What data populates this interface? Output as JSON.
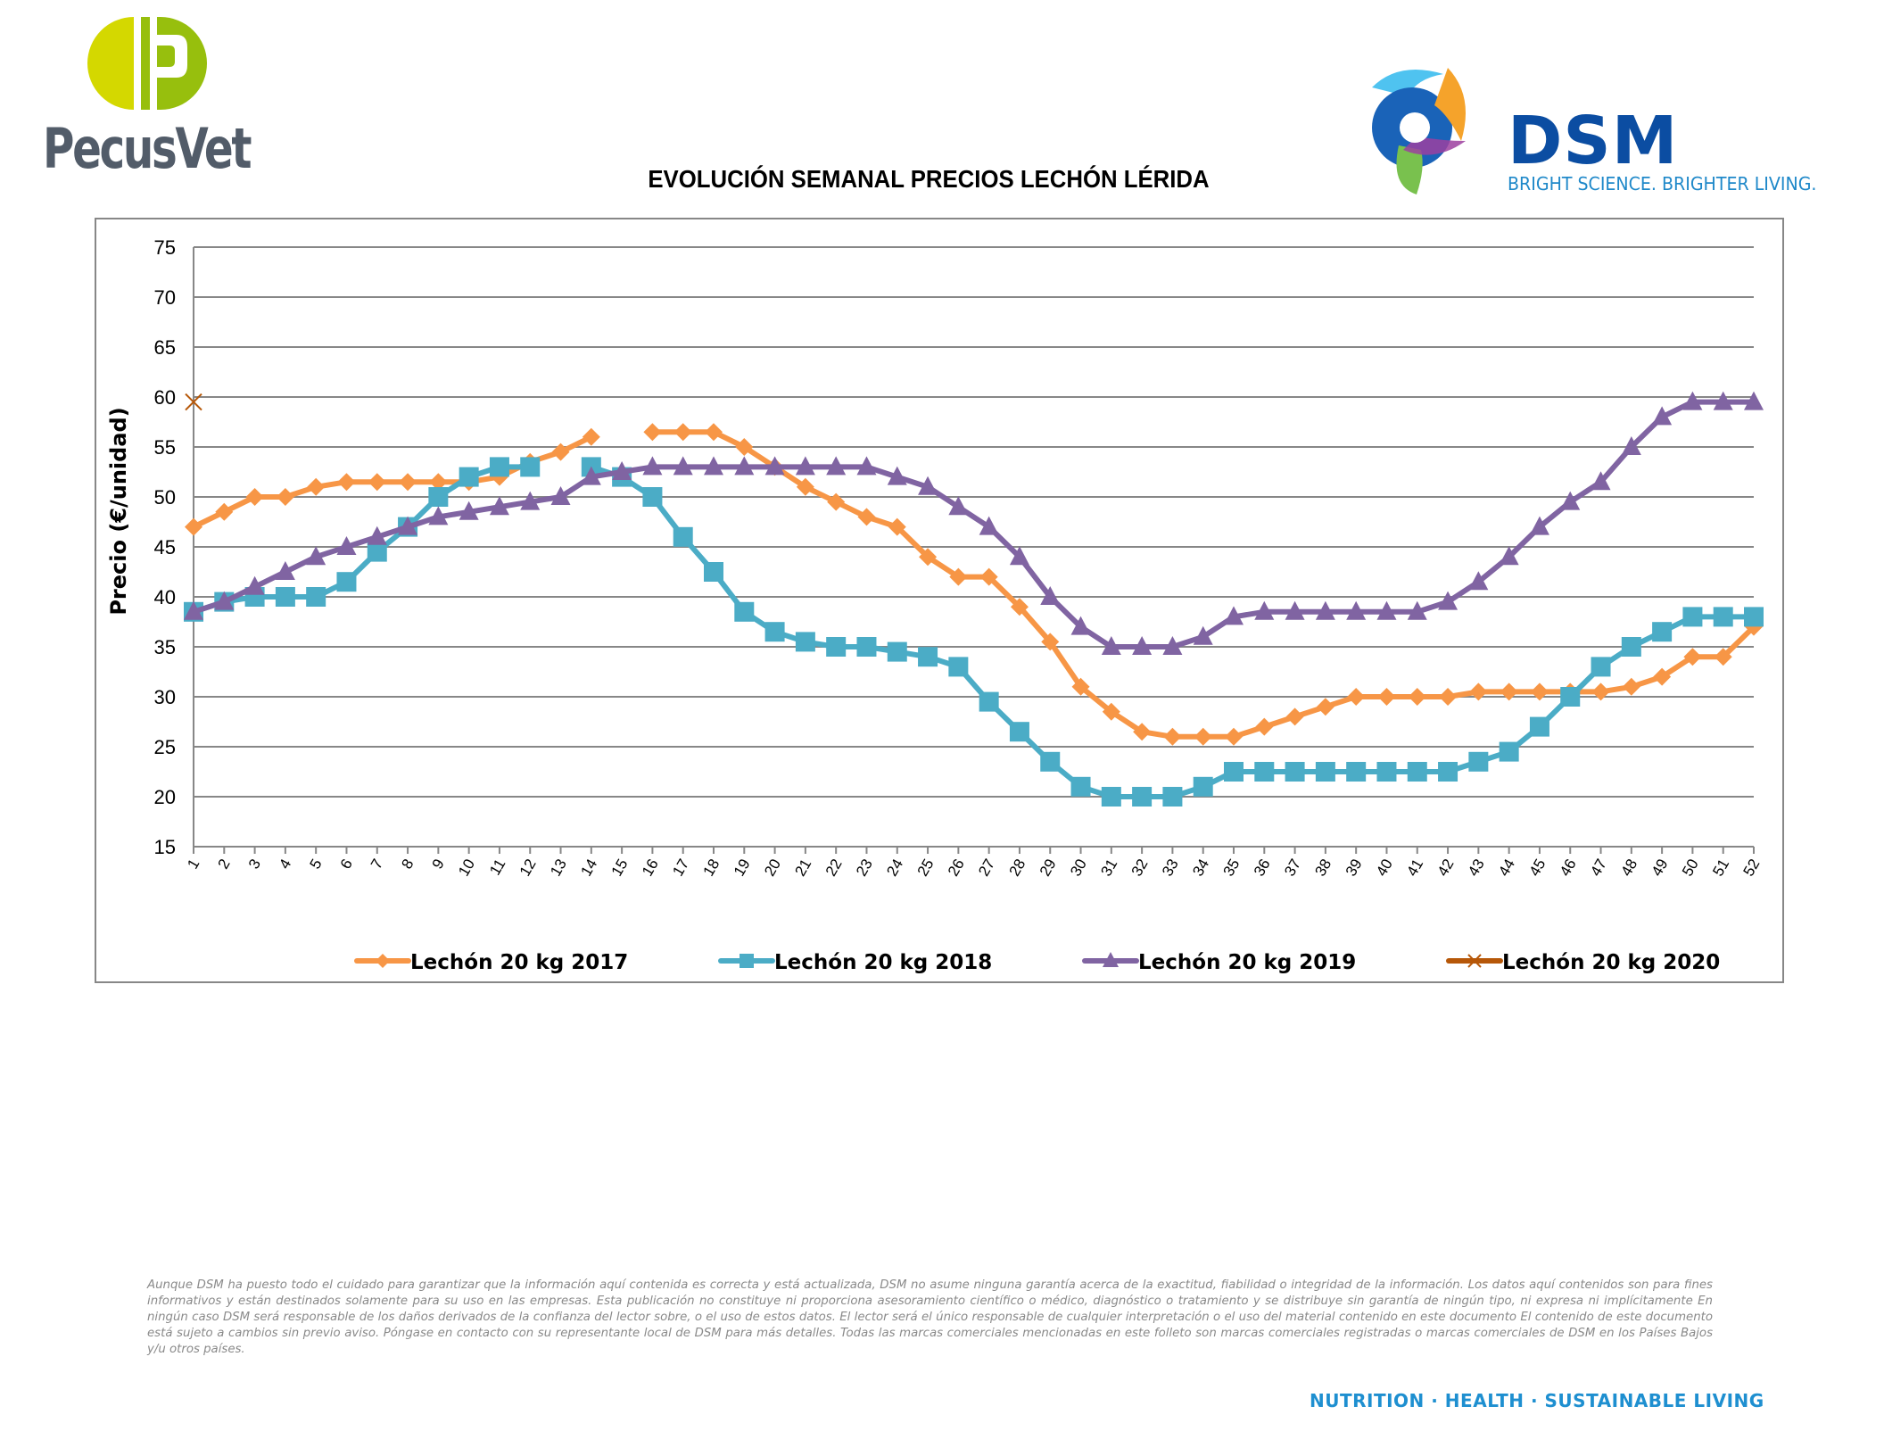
{
  "header": {
    "left_logo_text": "PecusVet",
    "right_logo_text": "DSM",
    "right_logo_tagline": "BRIGHT SCIENCE. BRIGHTER LIVING."
  },
  "colors": {
    "series_2017": "#F79646",
    "series_2018": "#4BACC6",
    "series_2019": "#8064A2",
    "series_2020": "#B65708",
    "grid": "#878787",
    "pecus_grey": "#525C69",
    "pecus_green_light": "#D4D800",
    "pecus_green": "#97BF0D",
    "dsm_blue": "#0B4DA2",
    "dsm_tagline_blue": "#1E88C9"
  },
  "chart_data": {
    "type": "line",
    "title": "EVOLUCIÓN SEMANAL PRECIOS LECHÓN LÉRIDA",
    "xlabel": "",
    "ylabel": "Precio (€/unidad)",
    "ylim": [
      15,
      75
    ],
    "yticks": [
      15,
      20,
      25,
      30,
      35,
      40,
      45,
      50,
      55,
      60,
      65,
      70,
      75
    ],
    "grid": true,
    "legend_position": "bottom",
    "x": [
      1,
      2,
      3,
      4,
      5,
      6,
      7,
      8,
      9,
      10,
      11,
      12,
      13,
      14,
      15,
      16,
      17,
      18,
      19,
      20,
      21,
      22,
      23,
      24,
      25,
      26,
      27,
      28,
      29,
      30,
      31,
      32,
      33,
      34,
      35,
      36,
      37,
      38,
      39,
      40,
      41,
      42,
      43,
      44,
      45,
      46,
      47,
      48,
      49,
      50,
      51,
      52
    ],
    "series": [
      {
        "name": "Lechón 20 kg 2017",
        "marker": "diamond",
        "values": [
          47,
          48.5,
          50,
          50,
          51,
          51.5,
          51.5,
          51.5,
          51.5,
          51.5,
          52,
          53.5,
          54.5,
          56,
          null,
          56.5,
          56.5,
          56.5,
          55,
          53,
          51,
          49.5,
          48,
          47,
          44,
          42,
          42,
          39,
          35.5,
          31,
          28.5,
          26.5,
          26,
          26,
          26,
          27,
          28,
          29,
          30,
          30,
          30,
          30,
          30.5,
          30.5,
          30.5,
          30.5,
          30.5,
          31,
          32,
          34,
          34,
          37
        ]
      },
      {
        "name": "Lechón 20 kg 2018",
        "marker": "square",
        "values": [
          38.5,
          39.5,
          40,
          40,
          40,
          41.5,
          44.5,
          47,
          50,
          52,
          53,
          53,
          null,
          53,
          52,
          50,
          46,
          42.5,
          38.5,
          36.5,
          35.5,
          35,
          35,
          34.5,
          34,
          33,
          29.5,
          26.5,
          23.5,
          21,
          20,
          20,
          20,
          21,
          22.5,
          22.5,
          22.5,
          22.5,
          22.5,
          22.5,
          22.5,
          22.5,
          23.5,
          24.5,
          27,
          30,
          33,
          35,
          36.5,
          38,
          38,
          38
        ]
      },
      {
        "name": "Lechón 20 kg 2019",
        "marker": "triangle",
        "values": [
          38.5,
          39.5,
          41,
          42.5,
          44,
          45,
          46,
          47,
          48,
          48.5,
          49,
          49.5,
          50,
          52,
          52.5,
          53,
          53,
          53,
          53,
          53,
          53,
          53,
          53,
          52,
          51,
          49,
          47,
          44,
          40,
          37,
          35,
          35,
          35,
          36,
          38,
          38.5,
          38.5,
          38.5,
          38.5,
          38.5,
          38.5,
          39.5,
          41.5,
          44,
          47,
          49.5,
          51.5,
          55,
          58,
          59.5,
          59.5,
          59.5
        ]
      },
      {
        "name": "Lechón 20 kg 2020",
        "marker": "x",
        "values": [
          59.5
        ]
      }
    ]
  },
  "footer": {
    "disclaimer": "Aunque DSM ha puesto todo el cuidado para garantizar que la información aquí contenida es correcta y está actualizada, DSM no asume ninguna garantía acerca de la exactitud, fiabilidad o integridad de la información. Los datos aquí contenidos son para fines informativos y están destinados solamente para su uso en las empresas. Esta publicación no constituye ni proporciona asesoramiento científico o médico, diagnóstico o tratamiento y se distribuye sin garantía de ningún tipo, ni expresa ni implícitamente En ningún caso DSM será responsable de los daños derivados de la confianza del lector sobre, o el uso de estos datos. El lector será el único responsable de cualquier interpretación o el uso del material contenido en este documento El contenido de este documento está sujeto a cambios sin previo aviso. Póngase en contacto con su representante local de DSM para más detalles. Todas las marcas comerciales mencionadas en este folleto son marcas comerciales registradas o marcas comerciales de DSM en los Países Bajos y/u otros países.",
    "slogan": "NUTRITION  ·  HEALTH  ·  SUSTAINABLE LIVING"
  }
}
